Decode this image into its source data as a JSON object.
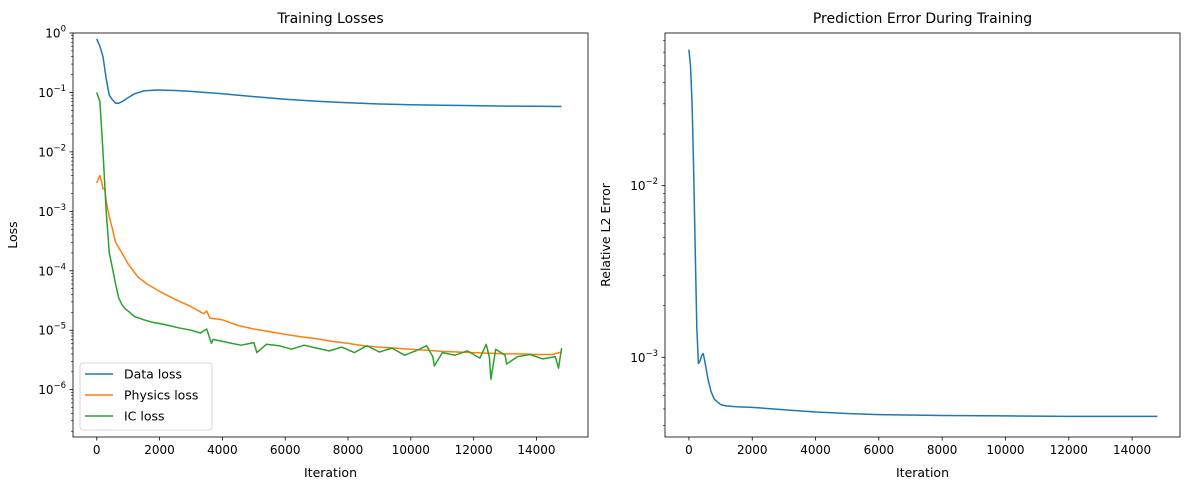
{
  "chart_data": [
    {
      "type": "line",
      "title": "Training Losses",
      "xlabel": "Iteration",
      "ylabel": "Loss",
      "yscale": "log",
      "xlim": [
        -756,
        15640
      ],
      "ylim": [
        1.6e-07,
        1
      ],
      "xticks": [
        0,
        2000,
        4000,
        6000,
        8000,
        10000,
        12000,
        14000
      ],
      "yticks": [
        {
          "value": 1,
          "label": "10",
          "exp": "0"
        },
        {
          "value": 0.1,
          "label": "10",
          "exp": "−1"
        },
        {
          "value": 0.01,
          "label": "10",
          "exp": "−2"
        },
        {
          "value": 0.001,
          "label": "10",
          "exp": "−3"
        },
        {
          "value": 0.0001,
          "label": "10",
          "exp": "−4"
        },
        {
          "value": 1e-05,
          "label": "10",
          "exp": "−5"
        },
        {
          "value": 1e-06,
          "label": "10",
          "exp": "−6"
        }
      ],
      "grid": false,
      "legend_position": "lower-left",
      "series": [
        {
          "name": "Data loss",
          "color": "#1f77b4",
          "x": [
            0,
            100,
            200,
            300,
            400,
            500,
            600,
            700,
            800,
            1000,
            1200,
            1500,
            1900,
            2500,
            3000,
            4000,
            5000,
            6000,
            7000,
            8000,
            9000,
            10000,
            11000,
            12000,
            13000,
            14000,
            14800
          ],
          "y": [
            0.8,
            0.6,
            0.4,
            0.17,
            0.09,
            0.075,
            0.066,
            0.066,
            0.07,
            0.082,
            0.095,
            0.106,
            0.11,
            0.108,
            0.104,
            0.095,
            0.085,
            0.077,
            0.071,
            0.067,
            0.064,
            0.062,
            0.061,
            0.06,
            0.059,
            0.0585,
            0.058
          ]
        },
        {
          "name": "Physics loss",
          "color": "#ff7f0e",
          "x": [
            0,
            50,
            100,
            150,
            200,
            250,
            300,
            400,
            500,
            600,
            800,
            1000,
            1300,
            1600,
            2000,
            2500,
            3000,
            3400,
            3500,
            3600,
            4000,
            4500,
            5000,
            5500,
            6000,
            6500,
            7000,
            7500,
            8000,
            8500,
            9000,
            9500,
            10000,
            10500,
            11000,
            11500,
            12000,
            12500,
            13000,
            13500,
            14000,
            14500,
            14800
          ],
          "y": [
            0.003,
            0.0035,
            0.004,
            0.0032,
            0.0024,
            0.0024,
            0.0015,
            0.0008,
            0.0005,
            0.0003,
            0.0002,
            0.00013,
            8e-05,
            6e-05,
            4.5e-05,
            3.3e-05,
            2.5e-05,
            1.9e-05,
            2.1e-05,
            1.6e-05,
            1.5e-05,
            1.2e-05,
            1.05e-05,
            9.5e-06,
            8.5e-06,
            7.8e-06,
            7.2e-06,
            6.5e-06,
            6e-06,
            5.5e-06,
            5.2e-06,
            5e-06,
            4.8e-06,
            4.6e-06,
            4.4e-06,
            4.3e-06,
            4.2e-06,
            4.1e-06,
            4e-06,
            4e-06,
            3.9e-06,
            3.9e-06,
            4.3e-06
          ]
        },
        {
          "name": "IC loss",
          "color": "#2ca02c",
          "x": [
            0,
            100,
            200,
            300,
            400,
            500,
            600,
            700,
            800,
            900,
            1000,
            1200,
            1500,
            1800,
            2000,
            2300,
            2600,
            3000,
            3300,
            3500,
            3650,
            3700,
            4000,
            4300,
            4600,
            5000,
            5100,
            5400,
            5800,
            6200,
            6600,
            7000,
            7400,
            7800,
            8200,
            8600,
            9000,
            9400,
            9800,
            10200,
            10500,
            10700,
            10750,
            11000,
            11400,
            11800,
            12200,
            12400,
            12500,
            12550,
            12700,
            13000,
            13050,
            13400,
            13800,
            14200,
            14600,
            14700,
            14800
          ],
          "y": [
            0.1,
            0.07,
            0.01,
            0.001,
            0.0002,
            0.00011,
            6e-05,
            3.5e-05,
            2.7e-05,
            2.3e-05,
            2.1e-05,
            1.7e-05,
            1.5e-05,
            1.35e-05,
            1.3e-05,
            1.2e-05,
            1.1e-05,
            1e-05,
            9e-06,
            1.05e-05,
            6e-06,
            7e-06,
            6.5e-06,
            6e-06,
            5.6e-06,
            6.2e-06,
            4.2e-06,
            5.8e-06,
            5.5e-06,
            4.8e-06,
            5.6e-06,
            5e-06,
            4.5e-06,
            5.2e-06,
            4.2e-06,
            5.5e-06,
            4.3e-06,
            5e-06,
            3.8e-06,
            4.6e-06,
            5.5e-06,
            3.6e-06,
            2.5e-06,
            4.2e-06,
            3.8e-06,
            4.5e-06,
            3.4e-06,
            5.8e-06,
            3.5e-06,
            1.5e-06,
            4.8e-06,
            3.8e-06,
            2.7e-06,
            3.6e-06,
            3.9e-06,
            3.3e-06,
            3.6e-06,
            2.3e-06,
            5e-06
          ]
        }
      ]
    },
    {
      "type": "line",
      "title": "Prediction Error During Training",
      "xlabel": "Iteration",
      "ylabel": "Relative L2 Error",
      "yscale": "log",
      "xlim": [
        -756,
        15513
      ],
      "ylim": [
        0.000343,
        0.0776
      ],
      "xticks": [
        0,
        2000,
        4000,
        6000,
        8000,
        10000,
        12000,
        14000
      ],
      "yticks": [
        {
          "value": 0.01,
          "label": "10",
          "exp": "−2"
        },
        {
          "value": 0.001,
          "label": "10",
          "exp": "−3"
        }
      ],
      "grid": false,
      "series": [
        {
          "color": "#1f77b4",
          "x": [
            0,
            50,
            100,
            150,
            200,
            250,
            300,
            350,
            400,
            450,
            500,
            600,
            700,
            800,
            1000,
            1200,
            1500,
            2000,
            3000,
            4000,
            5000,
            6000,
            8000,
            10000,
            12000,
            14800
          ],
          "y": [
            0.062,
            0.05,
            0.03,
            0.012,
            0.004,
            0.0015,
            0.00092,
            0.00095,
            0.00102,
            0.00105,
            0.00095,
            0.00075,
            0.00063,
            0.00057,
            0.00053,
            0.00052,
            0.000515,
            0.00051,
            0.000495,
            0.00048,
            0.00047,
            0.000463,
            0.000458,
            0.000455,
            0.000452,
            0.000452
          ]
        }
      ]
    }
  ]
}
